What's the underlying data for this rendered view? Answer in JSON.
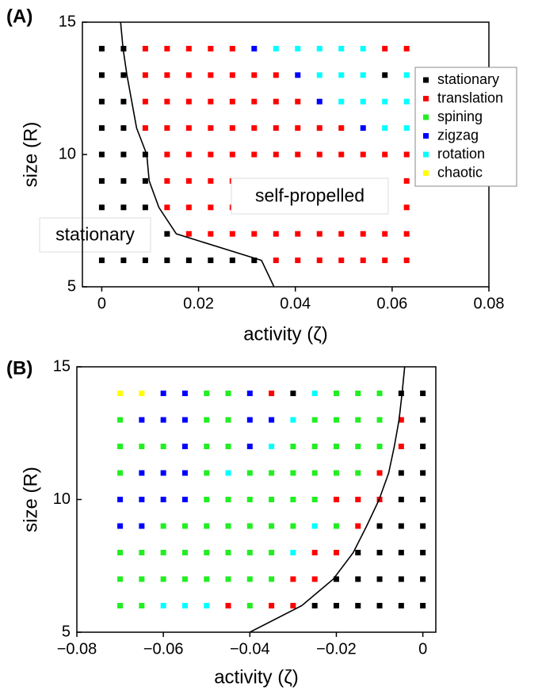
{
  "chart_data": [
    {
      "type": "scatter",
      "panel_label": "(A)",
      "xlabel": "activity (ζ)",
      "ylabel": "size (R)",
      "xlim": [
        -0.004,
        0.08
      ],
      "ylim": [
        5,
        15
      ],
      "xticks": [
        0,
        0.02,
        0.04,
        0.06,
        0.08
      ],
      "yticks": [
        5,
        10,
        15
      ],
      "legend": "upper right",
      "annotations": [
        "self-propelled",
        "stationary"
      ],
      "series": [
        {
          "name": "stationary",
          "color": "#000000",
          "x": [
            0,
            0.0045,
            0,
            0.0045,
            0.0585,
            0,
            0.0045,
            0,
            0.0045,
            0,
            0.0045,
            0.009,
            0,
            0.0045,
            0.009,
            0,
            0.0045,
            0.009,
            0,
            0.0045,
            0.009,
            0.0135,
            0,
            0.0045,
            0.009,
            0.0135,
            0.018,
            0.0225,
            0.027,
            0.0315
          ],
          "y": [
            14,
            14,
            13,
            13,
            13,
            12,
            12,
            11,
            11,
            10,
            10,
            10,
            9,
            9,
            9,
            8,
            8,
            8,
            7,
            7,
            7,
            7,
            6,
            6,
            6,
            6,
            6,
            6,
            6,
            6
          ]
        },
        {
          "name": "translation",
          "color": "#ff0000",
          "x": [
            0.009,
            0.0135,
            0.018,
            0.0225,
            0.027,
            0.0585,
            0.063,
            0.009,
            0.0135,
            0.018,
            0.0225,
            0.027,
            0.0315,
            0.036,
            0.009,
            0.0135,
            0.018,
            0.0225,
            0.027,
            0.0315,
            0.036,
            0.0405,
            0.009,
            0.0135,
            0.018,
            0.0225,
            0.027,
            0.0315,
            0.036,
            0.0405,
            0.045,
            0.0495,
            0.0135,
            0.018,
            0.0225,
            0.027,
            0.0315,
            0.036,
            0.0405,
            0.045,
            0.0495,
            0.054,
            0.0585,
            0.063,
            0.0135,
            0.018,
            0.0225,
            0.027,
            0.0315,
            0.036,
            0.0405,
            0.045,
            0.0495,
            0.054,
            0.0585,
            0.063,
            0.0135,
            0.018,
            0.0225,
            0.027,
            0.0315,
            0.036,
            0.0405,
            0.045,
            0.0495,
            0.054,
            0.0585,
            0.063,
            0.018,
            0.0225,
            0.027,
            0.0315,
            0.036,
            0.0405,
            0.045,
            0.0495,
            0.054,
            0.0585,
            0.063,
            0.036,
            0.0405,
            0.045,
            0.0495,
            0.054,
            0.0585,
            0.063
          ],
          "y": [
            14,
            14,
            14,
            14,
            14,
            14,
            14,
            13,
            13,
            13,
            13,
            13,
            13,
            13,
            12,
            12,
            12,
            12,
            12,
            12,
            12,
            12,
            11,
            11,
            11,
            11,
            11,
            11,
            11,
            11,
            11,
            11,
            10,
            10,
            10,
            10,
            10,
            10,
            10,
            10,
            10,
            10,
            10,
            10,
            9,
            9,
            9,
            9,
            9,
            9,
            9,
            9,
            9,
            9,
            9,
            9,
            8,
            8,
            8,
            8,
            8,
            8,
            8,
            8,
            8,
            8,
            8,
            8,
            7,
            7,
            7,
            7,
            7,
            7,
            7,
            7,
            7,
            7,
            7,
            6,
            6,
            6,
            6,
            6,
            6,
            6
          ]
        },
        {
          "name": "spining",
          "color": "#22ee22",
          "x": [],
          "y": []
        },
        {
          "name": "zigzag",
          "color": "#0000ff",
          "x": [
            0.0315,
            0.0405,
            0.045,
            0.054
          ],
          "y": [
            14,
            13,
            12,
            11
          ]
        },
        {
          "name": "rotation",
          "color": "#00ffff",
          "x": [
            0.036,
            0.0405,
            0.045,
            0.0495,
            0.054,
            0.045,
            0.0495,
            0.054,
            0.063,
            0.0495,
            0.054,
            0.0585,
            0.063,
            0.0585,
            0.063
          ],
          "y": [
            14,
            14,
            14,
            14,
            14,
            13,
            13,
            13,
            13,
            12,
            12,
            12,
            12,
            11,
            11
          ]
        },
        {
          "name": "chaotic",
          "color": "#ffff00",
          "x": [],
          "y": []
        }
      ],
      "curve": {
        "color": "#000000",
        "x": [
          0.0039,
          0.0044,
          0.0052,
          0.0062,
          0.0072,
          0.0093,
          0.0098,
          0.0118,
          0.0154,
          0.033,
          0.0356
        ],
        "y": [
          15,
          14,
          13,
          12,
          11,
          10,
          9,
          8,
          7,
          6,
          5
        ]
      }
    },
    {
      "type": "scatter",
      "panel_label": "(B)",
      "xlabel": "activity (ζ)",
      "ylabel": "size (R)",
      "xlim": [
        -0.08,
        0.003
      ],
      "ylim": [
        5,
        15
      ],
      "xticks": [
        {
          "value": -0.08,
          "label": "−0.08"
        },
        {
          "value": -0.06,
          "label": "−0.06"
        },
        {
          "value": -0.04,
          "label": "−0.04"
        },
        {
          "value": -0.02,
          "label": "−0.02"
        },
        0
      ],
      "yticks": [
        5,
        10,
        15
      ],
      "series": [
        {
          "color": "#000000",
          "x": [
            -0.03,
            -0.005,
            0,
            0,
            0,
            -0.005,
            0,
            -0.005,
            0,
            -0.01,
            -0.005,
            0,
            -0.015,
            -0.01,
            -0.005,
            0,
            -0.02,
            -0.015,
            -0.01,
            -0.005,
            0,
            -0.025,
            -0.02,
            -0.015,
            -0.01,
            -0.005,
            0
          ],
          "y": [
            14,
            14,
            14,
            13,
            12,
            11,
            11,
            10,
            10,
            9,
            9,
            9,
            8,
            8,
            8,
            8,
            7,
            7,
            7,
            7,
            7,
            6,
            6,
            6,
            6,
            6,
            6
          ]
        },
        {
          "color": "#ff0000",
          "x": [
            -0.035,
            -0.005,
            -0.005,
            -0.01,
            -0.02,
            -0.015,
            -0.01,
            -0.015,
            -0.025,
            -0.02,
            -0.03,
            -0.025,
            -0.045,
            -0.035,
            -0.03
          ],
          "y": [
            14,
            13,
            12,
            11,
            10,
            10,
            10,
            9,
            8,
            8,
            7,
            7,
            6,
            6,
            6
          ]
        },
        {
          "color": "#22ee22",
          "x": [
            -0.05,
            -0.045,
            -0.02,
            -0.015,
            -0.01,
            -0.07,
            -0.05,
            -0.045,
            -0.025,
            -0.02,
            -0.015,
            -0.01,
            -0.07,
            -0.065,
            -0.06,
            -0.05,
            -0.045,
            -0.03,
            -0.025,
            -0.02,
            -0.015,
            -0.01,
            -0.07,
            -0.05,
            -0.04,
            -0.035,
            -0.03,
            -0.025,
            -0.02,
            -0.015,
            -0.05,
            -0.045,
            -0.04,
            -0.035,
            -0.03,
            -0.025,
            -0.06,
            -0.055,
            -0.05,
            -0.045,
            -0.04,
            -0.035,
            -0.03,
            -0.02,
            -0.07,
            -0.065,
            -0.06,
            -0.055,
            -0.05,
            -0.045,
            -0.04,
            -0.035,
            -0.07,
            -0.065,
            -0.06,
            -0.055,
            -0.05,
            -0.045,
            -0.04,
            -0.035,
            -0.07,
            -0.065,
            -0.04
          ],
          "y": [
            14,
            14,
            14,
            14,
            14,
            13,
            13,
            13,
            13,
            13,
            13,
            13,
            12,
            12,
            12,
            12,
            12,
            12,
            12,
            12,
            12,
            12,
            11,
            11,
            11,
            11,
            11,
            11,
            11,
            11,
            10,
            10,
            10,
            10,
            10,
            10,
            9,
            9,
            9,
            9,
            9,
            9,
            9,
            9,
            8,
            8,
            8,
            8,
            8,
            8,
            8,
            8,
            7,
            7,
            7,
            7,
            7,
            7,
            7,
            7,
            6,
            6,
            6
          ]
        },
        {
          "color": "#0000ff",
          "x": [
            -0.06,
            -0.055,
            -0.04,
            -0.065,
            -0.06,
            -0.055,
            -0.04,
            -0.035,
            -0.055,
            -0.04,
            -0.065,
            -0.06,
            -0.055,
            -0.07,
            -0.065,
            -0.06,
            -0.055,
            -0.07,
            -0.065
          ],
          "y": [
            14,
            14,
            14,
            13,
            13,
            13,
            13,
            13,
            12,
            12,
            11,
            11,
            11,
            10,
            10,
            10,
            10,
            9,
            9
          ]
        },
        {
          "color": "#00ffff",
          "x": [
            -0.025,
            -0.03,
            -0.035,
            -0.045,
            -0.025,
            -0.03,
            -0.06,
            -0.055,
            -0.05
          ],
          "y": [
            14,
            13,
            12,
            11,
            9,
            8,
            6,
            6,
            6
          ]
        },
        {
          "color": "#ffff00",
          "x": [
            -0.07,
            -0.065
          ],
          "y": [
            14,
            14
          ]
        }
      ],
      "curve": {
        "color": "#000000",
        "x": [
          -0.0042,
          -0.0048,
          -0.0055,
          -0.0066,
          -0.0079,
          -0.0101,
          -0.013,
          -0.0161,
          -0.0207,
          -0.028,
          -0.04
        ],
        "y": [
          15,
          14,
          13,
          12,
          11,
          10,
          9,
          8,
          7,
          6,
          5
        ]
      }
    }
  ]
}
